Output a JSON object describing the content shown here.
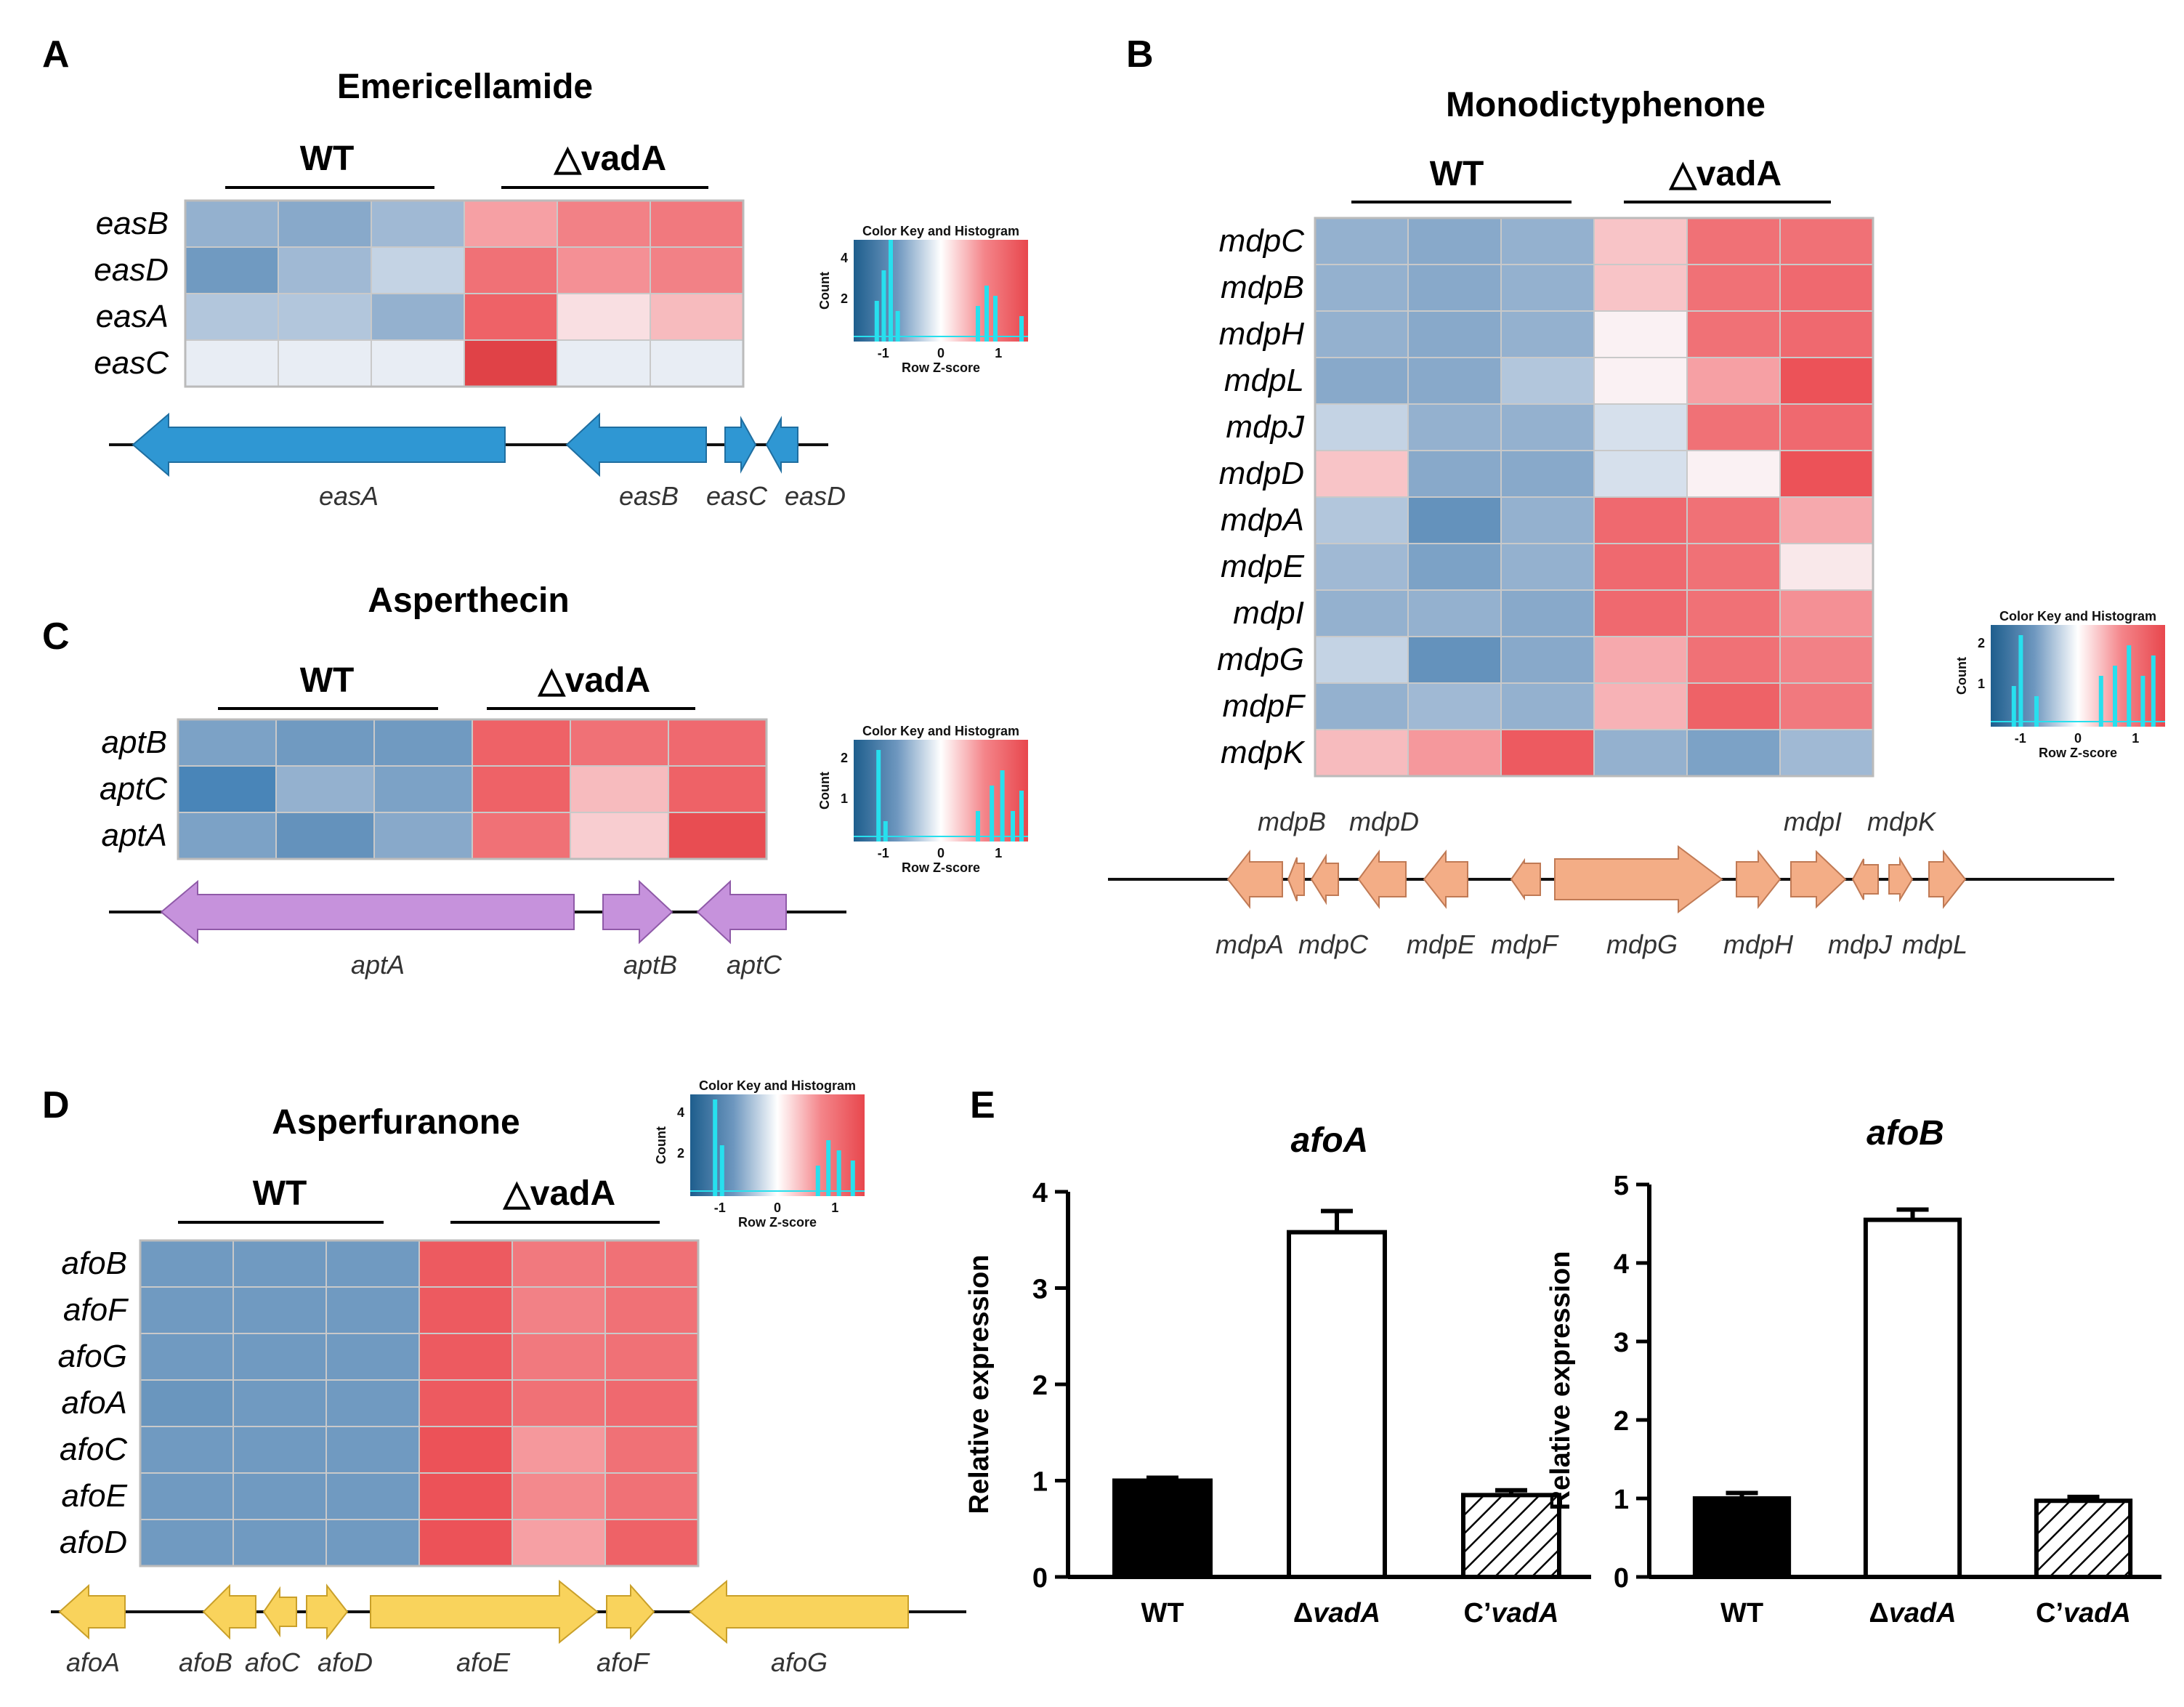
{
  "colors": {
    "strong_blue": "#3a7fbd",
    "blue": "#6e97bf",
    "light_blue": "#aac2d9",
    "pale": "#dbe5ee",
    "white": "#fbfbfb",
    "light_red": "#f9c4c6",
    "red": "#f4858a",
    "strong_red": "#e8474d",
    "gene_blue": "#2f97d3",
    "gene_purple": "#c692dc",
    "gene_orange": "#f3ad86",
    "gene_yellow": "#f9d35c"
  },
  "key": {
    "title": "Color Key and Histogram",
    "ylabel": "Count",
    "xlabel": "Row Z-score",
    "ticks": [
      "-1",
      "0",
      "1"
    ]
  },
  "panels": [
    {
      "id": "A",
      "title": "Emericellamide",
      "group_wt": "WT",
      "group_mut": "△vadA",
      "rows": [
        "easB",
        "easD",
        "easA",
        "easC"
      ],
      "z": [
        [
          -0.6,
          -0.7,
          -0.5,
          0.5,
          0.7,
          0.75
        ],
        [
          -0.9,
          -0.5,
          -0.3,
          0.8,
          0.6,
          0.7
        ],
        [
          -0.4,
          -0.4,
          -0.6,
          0.9,
          0.15,
          0.35
        ],
        [
          -0.1,
          -0.1,
          -0.1,
          1.3,
          -0.1,
          -0.1
        ]
      ],
      "key_hist_y": [
        "2",
        "4"
      ],
      "genes": [
        {
          "name": "easA",
          "dir": "L",
          "color": "gene_blue"
        },
        {
          "name": "easB",
          "dir": "L",
          "color": "gene_blue"
        },
        {
          "name": "easC",
          "dir": "R",
          "color": "gene_blue"
        },
        {
          "name": "easD",
          "dir": "L",
          "color": "gene_blue"
        }
      ]
    },
    {
      "id": "B",
      "title": "Monodictyphenone",
      "group_wt": "WT",
      "group_mut": "△vadA",
      "rows": [
        "mdpC",
        "mdpB",
        "mdpH",
        "mdpL",
        "mdpJ",
        "mdpD",
        "mdpA",
        "mdpE",
        "mdpI",
        "mdpG",
        "mdpF",
        "mdpK"
      ],
      "z": [
        [
          -0.6,
          -0.7,
          -0.6,
          0.3,
          0.8,
          0.8
        ],
        [
          -0.6,
          -0.7,
          -0.6,
          0.3,
          0.8,
          0.85
        ],
        [
          -0.6,
          -0.7,
          -0.6,
          0.05,
          0.8,
          0.85
        ],
        [
          -0.7,
          -0.7,
          -0.4,
          0.05,
          0.5,
          1.0
        ],
        [
          -0.3,
          -0.6,
          -0.6,
          -0.2,
          0.8,
          0.85
        ],
        [
          0.3,
          -0.7,
          -0.7,
          -0.2,
          0.05,
          1.0
        ],
        [
          -0.4,
          -1.0,
          -0.6,
          0.85,
          0.8,
          0.45
        ],
        [
          -0.5,
          -0.8,
          -0.6,
          0.85,
          0.8,
          0.1
        ],
        [
          -0.6,
          -0.6,
          -0.7,
          0.85,
          0.8,
          0.6
        ],
        [
          -0.3,
          -1.0,
          -0.7,
          0.45,
          0.8,
          0.7
        ],
        [
          -0.6,
          -0.5,
          -0.6,
          0.4,
          0.9,
          0.75
        ],
        [
          0.35,
          0.55,
          0.95,
          -0.6,
          -0.8,
          -0.5
        ]
      ],
      "key_hist_y": [
        "1",
        "2"
      ],
      "genes_top": [
        "mdpB",
        "mdpD",
        "mdpI",
        "mdpK"
      ],
      "genes_bottom": [
        "mdpA",
        "mdpC",
        "mdpE",
        "mdpF",
        "mdpG",
        "mdpH",
        "mdpJ",
        "mdpL"
      ]
    },
    {
      "id": "C",
      "title": "Asperthecin",
      "group_wt": "WT",
      "group_mut": "△vadA",
      "rows": [
        "aptB",
        "aptC",
        "aptA"
      ],
      "z": [
        [
          -0.8,
          -0.9,
          -0.9,
          0.9,
          0.8,
          0.85
        ],
        [
          -1.2,
          -0.6,
          -0.8,
          0.9,
          0.35,
          0.9
        ],
        [
          -0.8,
          -1.0,
          -0.7,
          0.8,
          0.25,
          1.1
        ]
      ],
      "key_hist_y": [
        "1",
        "2"
      ],
      "genes": [
        {
          "name": "aptA",
          "dir": "L",
          "color": "gene_purple"
        },
        {
          "name": "aptB",
          "dir": "R",
          "color": "gene_purple"
        },
        {
          "name": "aptC",
          "dir": "L",
          "color": "gene_purple"
        }
      ]
    },
    {
      "id": "D",
      "title": "Asperfuranone",
      "group_wt": "WT",
      "group_mut": "△vadA",
      "rows": [
        "afoB",
        "afoF",
        "afoG",
        "afoA",
        "afoC",
        "afoE",
        "afoD"
      ],
      "z": [
        [
          -0.9,
          -0.9,
          -0.9,
          0.95,
          0.75,
          0.8
        ],
        [
          -0.9,
          -0.9,
          -0.9,
          0.95,
          0.7,
          0.8
        ],
        [
          -0.9,
          -0.9,
          -0.9,
          0.95,
          0.75,
          0.8
        ],
        [
          -0.95,
          -0.9,
          -0.9,
          0.95,
          0.8,
          0.85
        ],
        [
          -0.9,
          -0.9,
          -0.9,
          1.0,
          0.55,
          0.8
        ],
        [
          -0.9,
          -0.9,
          -0.9,
          1.0,
          0.65,
          0.8
        ],
        [
          -0.9,
          -0.9,
          -0.9,
          1.0,
          0.5,
          0.9
        ]
      ],
      "key_hist_y": [
        "2",
        "4"
      ],
      "genes": [
        {
          "name": "afoA",
          "dir": "L"
        },
        {
          "name": "afoB",
          "dir": "L"
        },
        {
          "name": "afoC",
          "dir": "L"
        },
        {
          "name": "afoD",
          "dir": "R"
        },
        {
          "name": "afoE",
          "dir": "R"
        },
        {
          "name": "afoF",
          "dir": "R"
        },
        {
          "name": "afoG",
          "dir": "L"
        }
      ]
    }
  ],
  "panel_e_label": "E",
  "chart_data": [
    {
      "type": "bar",
      "title": "afoA",
      "xlabel": "",
      "ylabel": "Relative expression",
      "categories": [
        "WT",
        "ΔvadA",
        "C’vadA"
      ],
      "values": [
        1.0,
        3.58,
        0.85
      ],
      "errors": [
        0.03,
        0.22,
        0.05
      ],
      "fills": [
        "solid",
        "open",
        "hatched"
      ],
      "ylim": [
        0,
        4
      ],
      "yticks": [
        "0",
        "1",
        "2",
        "3",
        "4"
      ]
    },
    {
      "type": "bar",
      "title": "afoB",
      "xlabel": "",
      "ylabel": "Relative expression",
      "categories": [
        "WT",
        "ΔvadA",
        "C’vadA"
      ],
      "values": [
        1.0,
        4.55,
        0.97
      ],
      "errors": [
        0.07,
        0.13,
        0.05
      ],
      "fills": [
        "solid",
        "open",
        "hatched"
      ],
      "ylim": [
        0,
        5
      ],
      "yticks": [
        "0",
        "1",
        "2",
        "3",
        "4",
        "5"
      ]
    }
  ]
}
